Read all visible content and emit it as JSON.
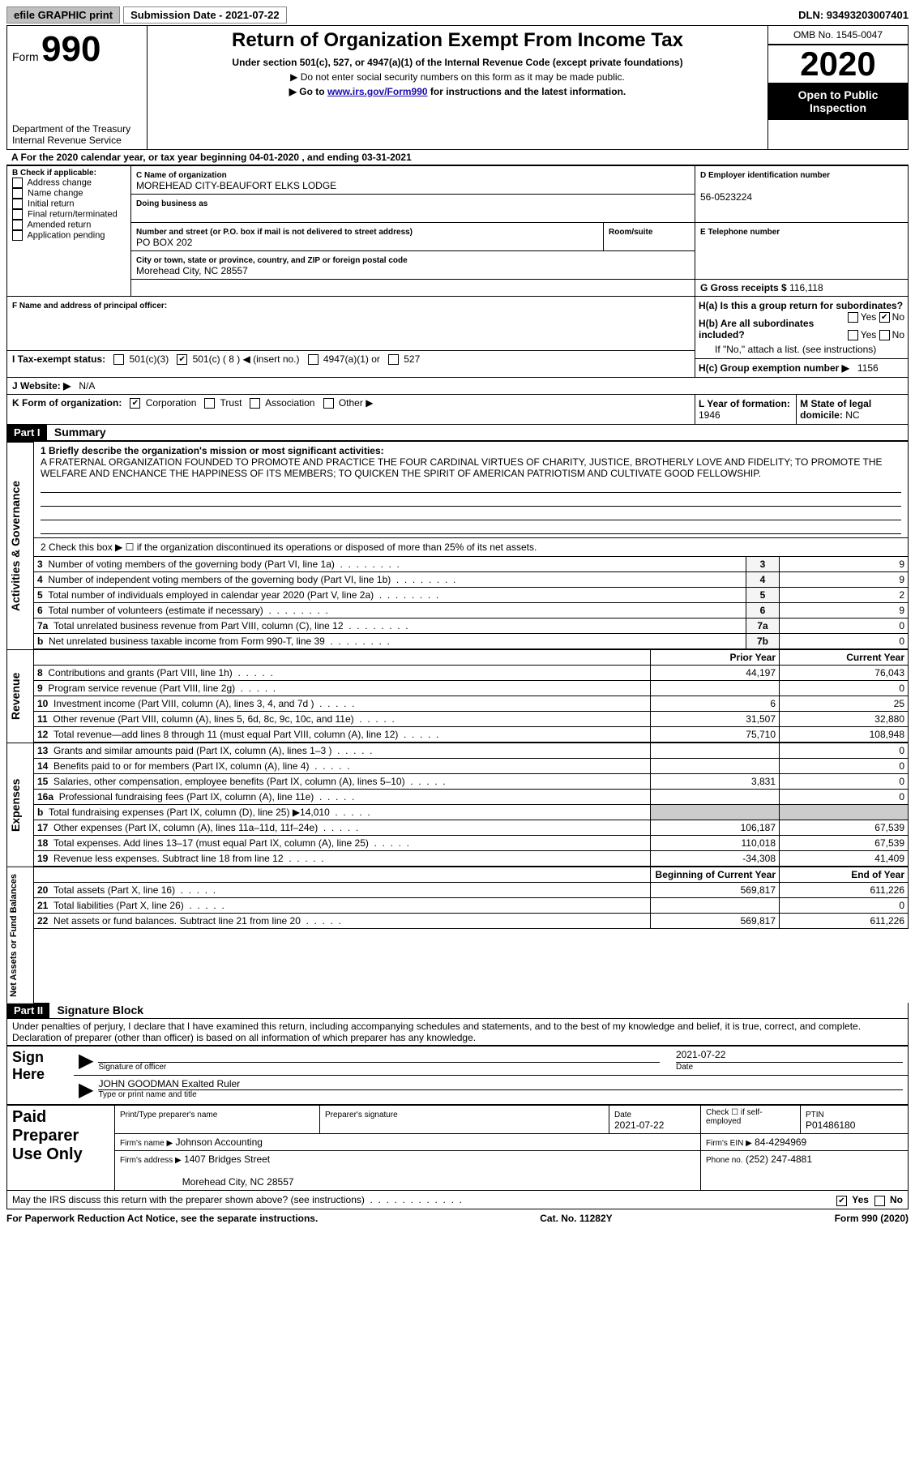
{
  "topbar": {
    "efile": "efile GRAPHIC print",
    "submission": "Submission Date - 2021-07-22",
    "dln": "DLN: 93493203007401"
  },
  "header": {
    "form_label": "Form",
    "form_number": "990",
    "title": "Return of Organization Exempt From Income Tax",
    "subtitle": "Under section 501(c), 527, or 4947(a)(1) of the Internal Revenue Code (except private foundations)",
    "warn1": "▶ Do not enter social security numbers on this form as it may be made public.",
    "warn2_pre": "▶ Go to ",
    "warn2_link": "www.irs.gov/Form990",
    "warn2_post": " for instructions and the latest information.",
    "omb": "OMB No. 1545-0047",
    "year": "2020",
    "open": "Open to Public Inspection",
    "dept": "Department of the Treasury\nInternal Revenue Service"
  },
  "sectionA": {
    "text": "A For the 2020 calendar year, or tax year beginning 04-01-2020    , and ending 03-31-2021"
  },
  "boxB": {
    "label": "B Check if applicable:",
    "items": [
      "Address change",
      "Name change",
      "Initial return",
      "Final return/terminated",
      "Amended return",
      "Application pending"
    ]
  },
  "boxC": {
    "name_label": "C Name of organization",
    "name": "MOREHEAD CITY-BEAUFORT ELKS LODGE",
    "dba_label": "Doing business as",
    "addr_label": "Number and street (or P.O. box if mail is not delivered to street address)",
    "room_label": "Room/suite",
    "addr": "PO BOX 202",
    "city_label": "City or town, state or province, country, and ZIP or foreign postal code",
    "city": "Morehead City, NC  28557"
  },
  "boxD": {
    "label": "D Employer identification number",
    "value": "56-0523224"
  },
  "boxE": {
    "label": "E Telephone number",
    "value": ""
  },
  "boxG": {
    "label": "G Gross receipts $",
    "value": "116,118"
  },
  "boxF": {
    "label": "F Name and address of principal officer:",
    "value": ""
  },
  "boxH": {
    "ha": "H(a)  Is this a group return for subordinates?",
    "hb": "H(b)  Are all subordinates included?",
    "hb_note": "If \"No,\" attach a list. (see instructions)",
    "hc": "H(c)  Group exemption number ▶",
    "hc_val": "1156"
  },
  "boxI": {
    "label": "I    Tax-exempt status:",
    "opts": [
      "501(c)(3)",
      "501(c) ( 8 ) ◀ (insert no.)",
      "4947(a)(1) or",
      "527"
    ]
  },
  "boxJ": {
    "label": "J    Website: ▶",
    "value": "N/A"
  },
  "boxK": {
    "label": "K Form of organization:",
    "opts": [
      "Corporation",
      "Trust",
      "Association",
      "Other ▶"
    ]
  },
  "boxL": {
    "label": "L Year of formation:",
    "value": "1946"
  },
  "boxM": {
    "label": "M State of legal domicile:",
    "value": "NC"
  },
  "part1": {
    "header": "Part I",
    "title": "Summary",
    "q1_label": "1   Briefly describe the organization's mission or most significant activities:",
    "q1": "A FRATERNAL ORGANIZATION FOUNDED TO PROMOTE AND PRACTICE THE FOUR CARDINAL VIRTUES OF CHARITY, JUSTICE, BROTHERLY LOVE AND FIDELITY; TO PROMOTE THE WELFARE AND ENCHANCE THE HAPPINESS OF ITS MEMBERS; TO QUICKEN THE SPIRIT OF AMERICAN PATRIOTISM AND CULTIVATE GOOD FELLOWSHIP.",
    "q2": "2   Check this box ▶ ☐  if the organization discontinued its operations or disposed of more than 25% of its net assets.",
    "rows_gov": [
      {
        "n": "3",
        "label": "Number of voting members of the governing body (Part VI, line 1a)",
        "box": "3",
        "val": "9"
      },
      {
        "n": "4",
        "label": "Number of independent voting members of the governing body (Part VI, line 1b)",
        "box": "4",
        "val": "9"
      },
      {
        "n": "5",
        "label": "Total number of individuals employed in calendar year 2020 (Part V, line 2a)",
        "box": "5",
        "val": "2"
      },
      {
        "n": "6",
        "label": "Total number of volunteers (estimate if necessary)",
        "box": "6",
        "val": "9"
      },
      {
        "n": "7a",
        "label": "Total unrelated business revenue from Part VIII, column (C), line 12",
        "box": "7a",
        "val": "0"
      },
      {
        "n": "b",
        "label": "Net unrelated business taxable income from Form 990-T, line 39",
        "box": "7b",
        "val": "0"
      }
    ],
    "col_prior": "Prior Year",
    "col_current": "Current Year",
    "revenue_rows": [
      {
        "n": "8",
        "label": "Contributions and grants (Part VIII, line 1h)",
        "p": "44,197",
        "c": "76,043"
      },
      {
        "n": "9",
        "label": "Program service revenue (Part VIII, line 2g)",
        "p": "",
        "c": "0"
      },
      {
        "n": "10",
        "label": "Investment income (Part VIII, column (A), lines 3, 4, and 7d )",
        "p": "6",
        "c": "25"
      },
      {
        "n": "11",
        "label": "Other revenue (Part VIII, column (A), lines 5, 6d, 8c, 9c, 10c, and 11e)",
        "p": "31,507",
        "c": "32,880"
      },
      {
        "n": "12",
        "label": "Total revenue—add lines 8 through 11 (must equal Part VIII, column (A), line 12)",
        "p": "75,710",
        "c": "108,948"
      }
    ],
    "expense_rows": [
      {
        "n": "13",
        "label": "Grants and similar amounts paid (Part IX, column (A), lines 1–3 )",
        "p": "",
        "c": "0"
      },
      {
        "n": "14",
        "label": "Benefits paid to or for members (Part IX, column (A), line 4)",
        "p": "",
        "c": "0"
      },
      {
        "n": "15",
        "label": "Salaries, other compensation, employee benefits (Part IX, column (A), lines 5–10)",
        "p": "3,831",
        "c": "0"
      },
      {
        "n": "16a",
        "label": "Professional fundraising fees (Part IX, column (A), line 11e)",
        "p": "",
        "c": "0"
      },
      {
        "n": "b",
        "label": "Total fundraising expenses (Part IX, column (D), line 25) ▶14,010",
        "p": "SHADE",
        "c": "SHADE"
      },
      {
        "n": "17",
        "label": "Other expenses (Part IX, column (A), lines 11a–11d, 11f–24e)",
        "p": "106,187",
        "c": "67,539"
      },
      {
        "n": "18",
        "label": "Total expenses. Add lines 13–17 (must equal Part IX, column (A), line 25)",
        "p": "110,018",
        "c": "67,539"
      },
      {
        "n": "19",
        "label": "Revenue less expenses. Subtract line 18 from line 12",
        "p": "-34,308",
        "c": "41,409"
      }
    ],
    "col_begin": "Beginning of Current Year",
    "col_end": "End of Year",
    "net_rows": [
      {
        "n": "20",
        "label": "Total assets (Part X, line 16)",
        "p": "569,817",
        "c": "611,226"
      },
      {
        "n": "21",
        "label": "Total liabilities (Part X, line 26)",
        "p": "",
        "c": "0"
      },
      {
        "n": "22",
        "label": "Net assets or fund balances. Subtract line 21 from line 20",
        "p": "569,817",
        "c": "611,226"
      }
    ],
    "vtab_gov": "Activities & Governance",
    "vtab_rev": "Revenue",
    "vtab_exp": "Expenses",
    "vtab_net": "Net Assets or Fund Balances"
  },
  "part2": {
    "header": "Part II",
    "title": "Signature Block",
    "declaration": "Under penalties of perjury, I declare that I have examined this return, including accompanying schedules and statements, and to the best of my knowledge and belief, it is true, correct, and complete. Declaration of preparer (other than officer) is based on all information of which preparer has any knowledge.",
    "sign_here": "Sign Here",
    "sig_officer": "Signature of officer",
    "sig_date": "2021-07-22",
    "date_label": "Date",
    "officer_name": "JOHN GOODMAN Exalted Ruler",
    "officer_type": "Type or print name and title",
    "paid": "Paid Preparer Use Only",
    "pp_name_label": "Print/Type preparer's name",
    "pp_sig_label": "Preparer's signature",
    "pp_date_label": "Date",
    "pp_date": "2021-07-22",
    "pp_check": "Check ☐ if self-employed",
    "pp_ptin_label": "PTIN",
    "pp_ptin": "P01486180",
    "firm_name_label": "Firm's name     ▶",
    "firm_name": "Johnson Accounting",
    "firm_ein_label": "Firm's EIN ▶",
    "firm_ein": "84-4294969",
    "firm_addr_label": "Firm's address ▶",
    "firm_addr": "1407 Bridges Street",
    "firm_city": "Morehead City, NC  28557",
    "phone_label": "Phone no.",
    "phone": "(252) 247-4881",
    "may_irs": "May the IRS discuss this return with the preparer shown above? (see instructions)"
  },
  "footer": {
    "pra": "For Paperwork Reduction Act Notice, see the separate instructions.",
    "cat": "Cat. No. 11282Y",
    "form": "Form 990 (2020)"
  }
}
